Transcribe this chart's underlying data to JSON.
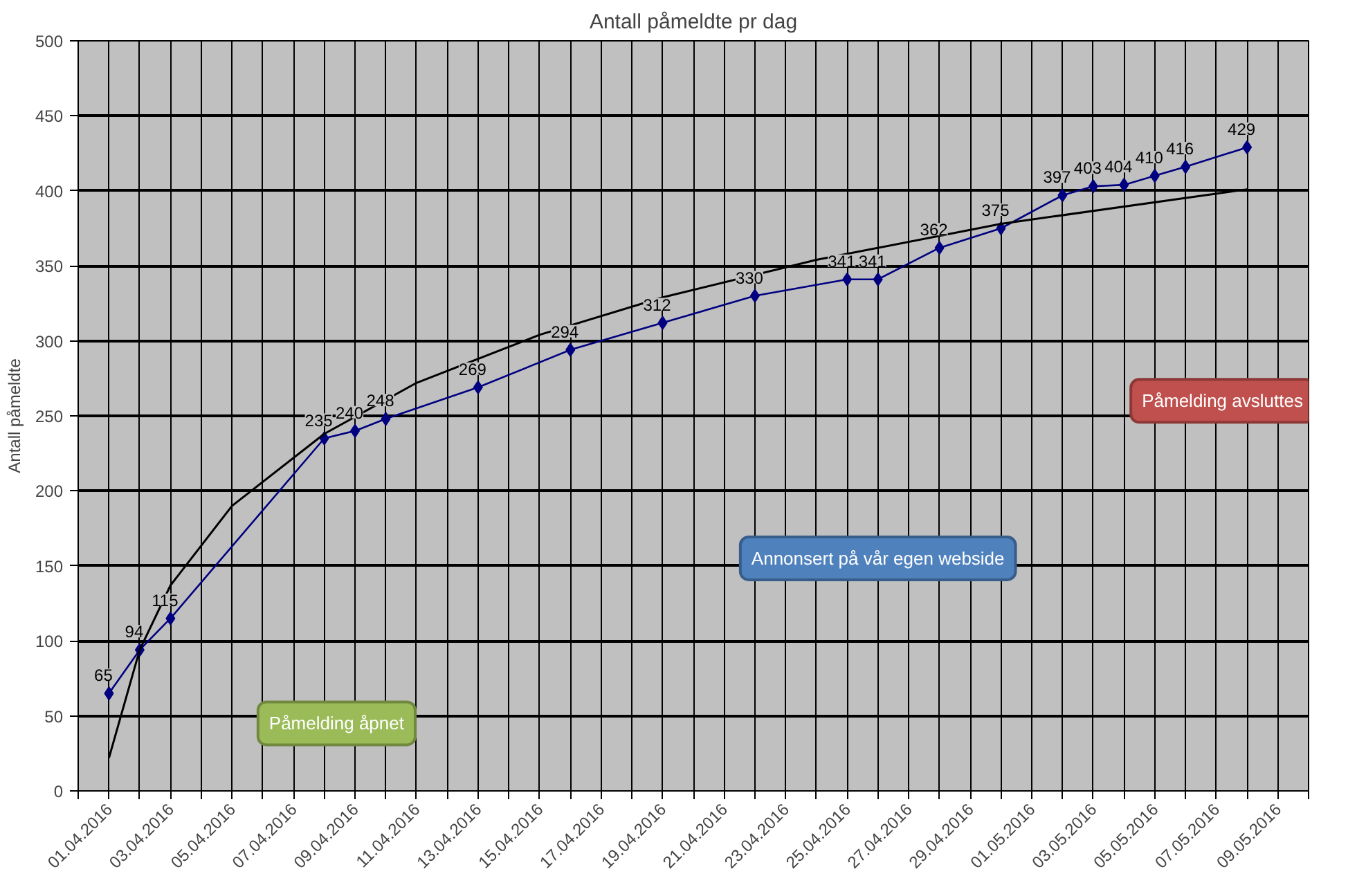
{
  "chart_data": {
    "type": "line",
    "title": "Antall påmeldte pr dag",
    "ylabel": "Antall påmeldte",
    "x": [
      "2016-04-01",
      "2016-04-02",
      "2016-04-03",
      "2016-04-08",
      "2016-04-09",
      "2016-04-10",
      "2016-04-13",
      "2016-04-16",
      "2016-04-19",
      "2016-04-22",
      "2016-04-25",
      "2016-04-26",
      "2016-04-28",
      "2016-04-30",
      "2016-05-02",
      "2016-05-03",
      "2016-05-04",
      "2016-05-05",
      "2016-05-06",
      "2016-05-08"
    ],
    "series": [
      {
        "color": "#000080",
        "marker": "diamond",
        "values": [
          65,
          94,
          115,
          235,
          240,
          248,
          269,
          294,
          312,
          330,
          341,
          341,
          362,
          375,
          397,
          403,
          404,
          410,
          416,
          429
        ],
        "value_labels": [
          "65",
          "94",
          "115",
          "235",
          "240",
          "248",
          "269",
          "294",
          "312",
          "330",
          "341",
          "341",
          "362",
          "375",
          "397",
          "403",
          "404",
          "410",
          "416",
          "429"
        ]
      },
      {
        "type": "line",
        "color": "#000000",
        "marker": "none",
        "x": [
          "2016-04-01",
          "2016-04-02",
          "2016-04-03",
          "2016-04-05",
          "2016-04-08",
          "2016-04-11",
          "2016-04-15",
          "2016-04-19",
          "2016-04-24",
          "2016-04-30",
          "2016-05-08"
        ],
        "values": [
          22,
          94,
          137,
          190,
          238,
          272,
          304,
          329,
          354,
          378,
          401
        ]
      }
    ],
    "xlim": [
      "2016-03-31",
      "2016-05-10"
    ],
    "xticks": [
      {
        "value": "2016-04-01",
        "label": "01.04.2016"
      },
      {
        "value": "2016-04-03",
        "label": "03.04.2016"
      },
      {
        "value": "2016-04-05",
        "label": "05.04.2016"
      },
      {
        "value": "2016-04-07",
        "label": "07.04.2016"
      },
      {
        "value": "2016-04-09",
        "label": "09.04.2016"
      },
      {
        "value": "2016-04-11",
        "label": "11.04.2016"
      },
      {
        "value": "2016-04-13",
        "label": "13.04.2016"
      },
      {
        "value": "2016-04-15",
        "label": "15.04.2016"
      },
      {
        "value": "2016-04-17",
        "label": "17.04.2016"
      },
      {
        "value": "2016-04-19",
        "label": "19.04.2016"
      },
      {
        "value": "2016-04-21",
        "label": "21.04.2016"
      },
      {
        "value": "2016-04-23",
        "label": "23.04.2016"
      },
      {
        "value": "2016-04-25",
        "label": "25.04.2016"
      },
      {
        "value": "2016-04-27",
        "label": "27.04.2016"
      },
      {
        "value": "2016-04-29",
        "label": "29.04.2016"
      },
      {
        "value": "2016-05-01",
        "label": "01.05.2016"
      },
      {
        "value": "2016-05-03",
        "label": "03.05.2016"
      },
      {
        "value": "2016-05-05",
        "label": "05.05.2016"
      },
      {
        "value": "2016-05-07",
        "label": "07.05.2016"
      },
      {
        "value": "2016-05-09",
        "label": "09.05.2016"
      }
    ],
    "ylim": [
      0,
      500
    ],
    "yticks": [
      0,
      50,
      100,
      150,
      200,
      250,
      300,
      350,
      400,
      450,
      500
    ],
    "grid": true,
    "line_style": "solid",
    "annotations": [
      "Påmelding åpnet",
      "Annonsert på vår egen webside",
      "Påmelding avsluttes"
    ]
  }
}
